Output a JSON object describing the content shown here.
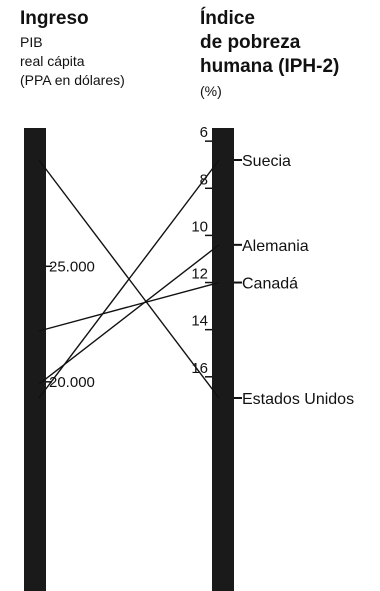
{
  "chart_data": {
    "type": "parallel-coordinates",
    "left_axis": {
      "title": "Ingreso",
      "subtitle_lines": [
        "PIB",
        "real cápita",
        "(PPA en dólares)"
      ],
      "tick_labels": [
        "25.000",
        "20.000"
      ],
      "ticks": [
        25000,
        20000
      ]
    },
    "right_axis": {
      "title_lines": [
        "Índice",
        "de pobreza",
        "humana (IPH-2)"
      ],
      "unit": "(%)",
      "tick_labels": [
        "6",
        "8",
        "10",
        "12",
        "14",
        "16"
      ],
      "ticks": [
        6,
        8,
        10,
        12,
        14,
        16
      ],
      "range": [
        6,
        17
      ]
    },
    "countries": [
      {
        "name": "Suecia",
        "income": 19300,
        "hpi": 6.8
      },
      {
        "name": "Alemania",
        "income": 19900,
        "hpi": 10.4
      },
      {
        "name": "Canadá",
        "income": 22200,
        "hpi": 12.0
      },
      {
        "name": "Estados Unidos",
        "income": 29600,
        "hpi": 16.9
      }
    ]
  }
}
